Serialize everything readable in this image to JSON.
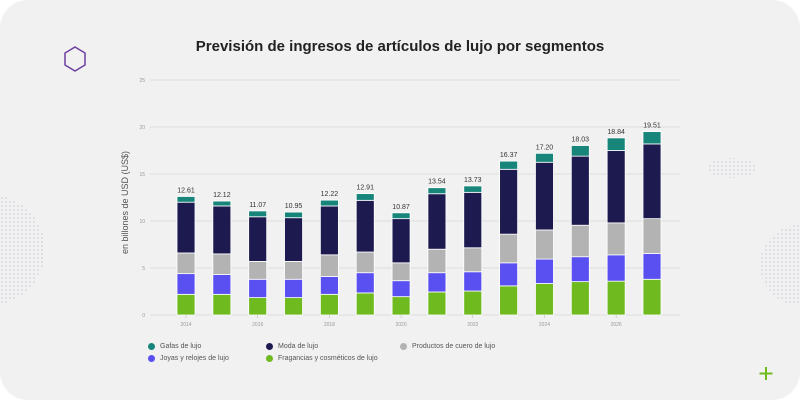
{
  "chart_data": {
    "type": "bar",
    "stacked": true,
    "title": "Previsión de ingresos de artículos de lujo por segmentos",
    "ylabel": "en billones de USD (US$)",
    "xlabel": "",
    "ylim": [
      0,
      25
    ],
    "yticks": [
      0,
      5,
      10,
      15,
      20,
      25
    ],
    "grid": true,
    "legend_position": "bottom",
    "categories": [
      "2014",
      "2015",
      "2016",
      "2017",
      "2018",
      "2019",
      "2020",
      "2021",
      "2022",
      "2023",
      "2024",
      "2025",
      "2026",
      "2027"
    ],
    "xtick_labels": [
      "2014",
      "",
      "2016",
      "",
      "2018",
      "",
      "2020",
      "",
      "2022",
      "",
      "2024",
      "",
      "2026",
      ""
    ],
    "totals": [
      "12.61",
      "12.12",
      "11.07",
      "10.95",
      "12.22",
      "12.91",
      "10.87",
      "13.54",
      "13.73",
      "16.37",
      "17.20",
      "18.03",
      "18.84",
      "19.51"
    ],
    "series": [
      {
        "name": "Fragancias y cosméticos de lujo",
        "color": "#6fbb1f",
        "values": [
          2.2,
          2.2,
          1.85,
          1.85,
          2.2,
          2.35,
          1.95,
          2.45,
          2.55,
          3.1,
          3.35,
          3.55,
          3.6,
          3.8
        ]
      },
      {
        "name": "Joyas y relojes de lujo",
        "color": "#5a4ff0",
        "values": [
          2.2,
          2.1,
          1.95,
          1.95,
          1.9,
          2.15,
          1.7,
          2.05,
          2.05,
          2.45,
          2.6,
          2.65,
          2.8,
          2.75
        ]
      },
      {
        "name": "Productos de cuero de lujo",
        "color": "#b3b3b3",
        "values": [
          2.2,
          2.2,
          1.9,
          1.9,
          2.3,
          2.2,
          1.9,
          2.5,
          2.55,
          3.05,
          3.1,
          3.35,
          3.4,
          3.7
        ]
      },
      {
        "name": "Moda de lujo",
        "color": "#1d1a50",
        "values": [
          5.4,
          5.1,
          4.75,
          4.65,
          5.2,
          5.5,
          4.7,
          5.9,
          5.9,
          6.9,
          7.2,
          7.35,
          7.7,
          7.95
        ]
      },
      {
        "name": "Gafas de lujo",
        "color": "#17857a",
        "values": [
          0.61,
          0.52,
          0.62,
          0.6,
          0.62,
          0.71,
          0.62,
          0.64,
          0.68,
          0.87,
          0.95,
          1.13,
          1.34,
          1.31
        ]
      }
    ]
  },
  "legend": [
    {
      "label": "Gafas de lujo",
      "color": "#17857a"
    },
    {
      "label": "Moda de lujo",
      "color": "#1d1a50"
    },
    {
      "label": "Productos de cuero de lujo",
      "color": "#b3b3b3"
    },
    {
      "label": "Joyas y relojes de lujo",
      "color": "#5a4ff0"
    },
    {
      "label": "Fragancias y cosméticos de lujo",
      "color": "#6fbb1f"
    }
  ],
  "decor": {
    "hexagon_color": "#6b3fa0",
    "plus_color": "#6fbb1f"
  }
}
